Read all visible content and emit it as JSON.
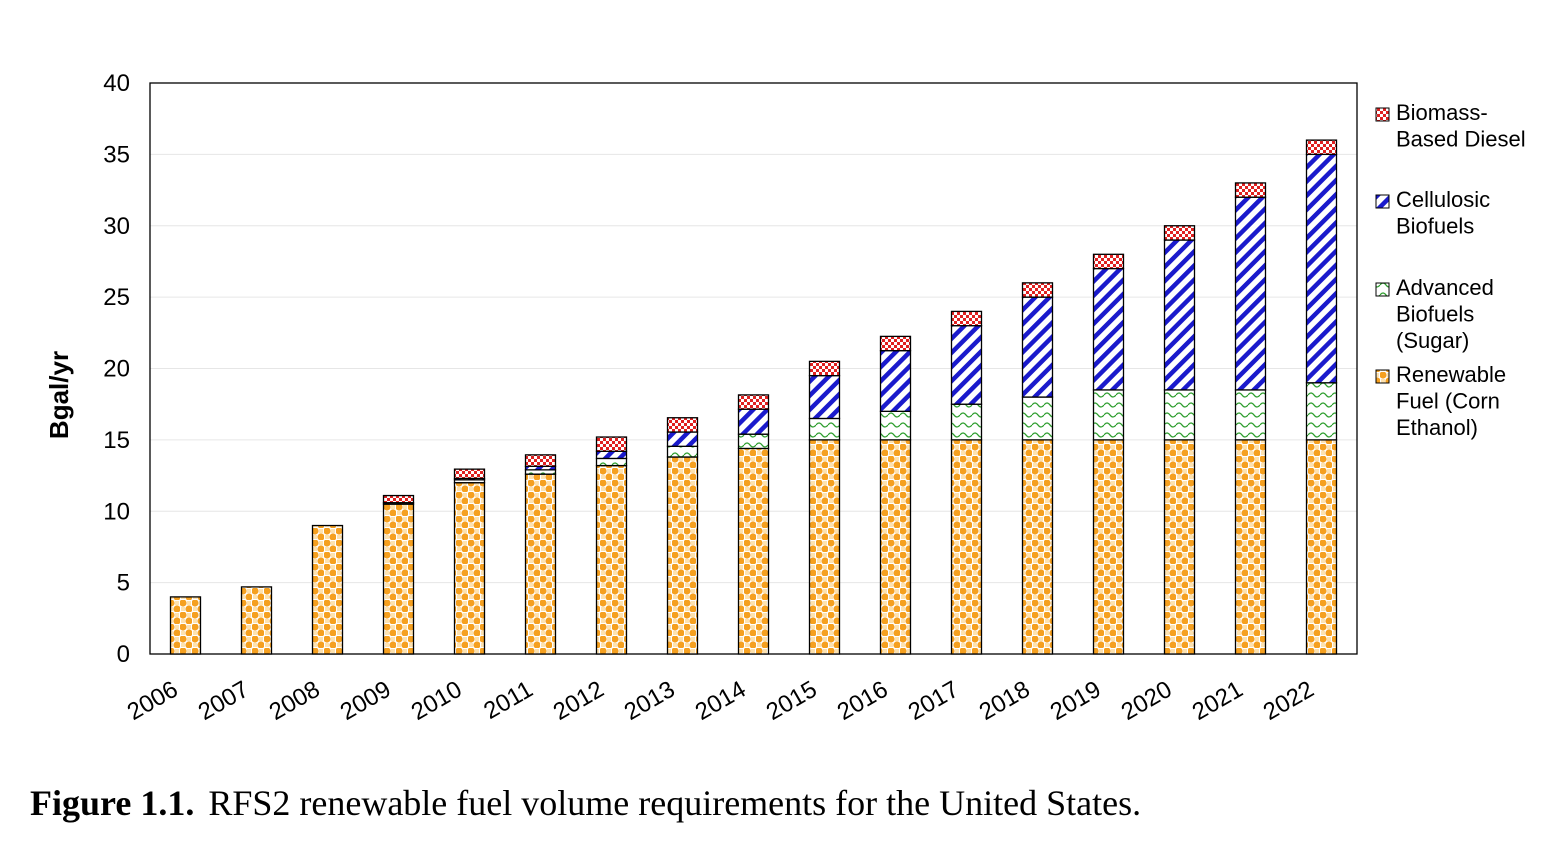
{
  "chart_data": {
    "type": "bar",
    "stacked": true,
    "title": "",
    "xlabel": "",
    "ylabel": "Bgal/yr",
    "ylim": [
      0,
      40
    ],
    "yticks": [
      0,
      5,
      10,
      15,
      20,
      25,
      30,
      35,
      40
    ],
    "grid": true,
    "legend_position": "right",
    "categories": [
      "2006",
      "2007",
      "2008",
      "2009",
      "2010",
      "2011",
      "2012",
      "2013",
      "2014",
      "2015",
      "2016",
      "2017",
      "2018",
      "2019",
      "2020",
      "2021",
      "2022"
    ],
    "series": [
      {
        "name": "Renewable Fuel (Corn Ethanol)",
        "legend_lines": [
          "Renewable",
          "Fuel (Corn",
          "Ethanol)"
        ],
        "color": "#f5a020",
        "pattern": "dots",
        "values": [
          4.0,
          4.7,
          9.0,
          10.5,
          12.0,
          12.6,
          13.2,
          13.8,
          14.4,
          15,
          15,
          15,
          15,
          15,
          15,
          15,
          15
        ]
      },
      {
        "name": "Advanced Biofuels (Sugar)",
        "legend_lines": [
          "Advanced",
          "Biofuels",
          "(Sugar)"
        ],
        "color": "#2e9e2e",
        "pattern": "waves",
        "values": [
          0,
          0,
          0,
          0.1,
          0.2,
          0.3,
          0.5,
          0.75,
          1.0,
          1.5,
          2.0,
          2.5,
          3.0,
          3.5,
          3.5,
          3.5,
          4.0
        ]
      },
      {
        "name": "Cellulosic Biofuels",
        "legend_lines": [
          "Cellulosic",
          "Biofuels"
        ],
        "color": "#1a1acc",
        "pattern": "diagonal",
        "values": [
          0,
          0,
          0,
          0,
          0.1,
          0.25,
          0.5,
          1.0,
          1.75,
          3.0,
          4.25,
          5.5,
          7.0,
          8.5,
          10.5,
          13.5,
          16.0
        ]
      },
      {
        "name": "Biomass-Based Diesel",
        "legend_lines": [
          "Biomass-",
          "Based Diesel"
        ],
        "color": "#e02020",
        "pattern": "checker",
        "values": [
          0,
          0,
          0,
          0.5,
          0.65,
          0.8,
          1.0,
          1.0,
          1.0,
          1.0,
          1.0,
          1.0,
          1.0,
          1.0,
          1.0,
          1.0,
          1.0
        ]
      }
    ]
  },
  "caption": {
    "label": "Figure 1.1.",
    "text": "RFS2 renewable fuel volume requirements for the United States."
  }
}
